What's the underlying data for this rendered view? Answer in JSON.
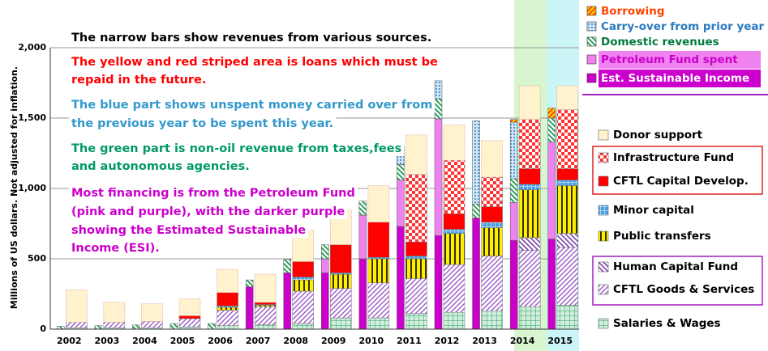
{
  "chart_data": {
    "type": "bar",
    "ylabel": "Millions of US dollars.  Not adjusted for inflation.",
    "categories": [
      "2002",
      "2003",
      "2004",
      "2005",
      "2006",
      "2007",
      "2008",
      "2009",
      "2010",
      "2011",
      "2012",
      "2013",
      "2014",
      "2015"
    ],
    "ylim": [
      0,
      2000
    ],
    "yticks": [
      0,
      500,
      {
        "value": 1000,
        "label": "1,000"
      },
      {
        "value": 1500,
        "label": "1,500"
      },
      {
        "value": 2000,
        "label": "2,000"
      }
    ],
    "revenue_series": [
      {
        "name": "Est. Sustainable Income",
        "color": "#cc00cc",
        "values": [
          0,
          0,
          0,
          0,
          0,
          300,
          400,
          400,
          500,
          730,
          665,
          790,
          630,
          640
        ]
      },
      {
        "name": "Petroleum Fund spent",
        "color": "#ee82ee",
        "values": [
          0,
          0,
          0,
          0,
          0,
          0,
          0,
          100,
          310,
          330,
          830,
          0,
          270,
          690
        ]
      },
      {
        "name": "Domestic revenues",
        "color": "#2e9e5a",
        "values": [
          20,
          25,
          30,
          40,
          40,
          50,
          95,
          100,
          100,
          110,
          140,
          100,
          170,
          170
        ]
      },
      {
        "name": "Carry-over from prior year",
        "color": "#5aa8e0",
        "values": [
          0,
          0,
          0,
          0,
          0,
          0,
          0,
          0,
          0,
          130,
          130,
          590,
          400,
          0
        ]
      },
      {
        "name": "Borrowing",
        "color": "#ffcc00",
        "values": [
          0,
          0,
          0,
          0,
          0,
          0,
          0,
          0,
          0,
          0,
          0,
          0,
          20,
          70
        ]
      }
    ],
    "expenditure_series": [
      {
        "name": "Salaries & Wages",
        "color": "#9fe0b0",
        "values": [
          10,
          10,
          10,
          15,
          25,
          30,
          40,
          80,
          80,
          110,
          120,
          130,
          160,
          170
        ]
      },
      {
        "name": "CFTL Goods & Services",
        "color": "#9b59c8",
        "values": [
          40,
          40,
          45,
          60,
          110,
          130,
          230,
          210,
          250,
          250,
          340,
          390,
          400,
          410
        ]
      },
      {
        "name": "Human Capital Fund",
        "color": "#7a3fa8",
        "values": [
          0,
          0,
          0,
          0,
          0,
          0,
          0,
          0,
          0,
          0,
          0,
          0,
          90,
          100
        ]
      },
      {
        "name": "Public transfers",
        "color": "#ffee00",
        "values": [
          0,
          0,
          0,
          0,
          20,
          10,
          80,
          100,
          170,
          140,
          220,
          200,
          340,
          340
        ]
      },
      {
        "name": "Minor capital",
        "color": "#4aa0e0",
        "values": [
          0,
          0,
          0,
          0,
          10,
          5,
          20,
          10,
          10,
          20,
          30,
          40,
          40,
          40
        ]
      },
      {
        "name": "CFTL Capital Develop.",
        "color": "#ff0000",
        "values": [
          0,
          0,
          0,
          20,
          95,
          15,
          110,
          200,
          250,
          100,
          110,
          110,
          110,
          80
        ]
      },
      {
        "name": "Infrastructure Fund",
        "color": "#ff3333",
        "values": [
          0,
          0,
          0,
          0,
          0,
          0,
          0,
          0,
          0,
          480,
          380,
          210,
          350,
          420
        ]
      },
      {
        "name": "Donor support",
        "color": "#fff2cc",
        "values": [
          230,
          140,
          125,
          120,
          165,
          200,
          225,
          245,
          260,
          280,
          250,
          260,
          240,
          170
        ]
      }
    ],
    "annotations": [
      {
        "color": "#000000",
        "lines": [
          "The narrow bars show revenues from various sources."
        ]
      },
      {
        "color": "#ff0000",
        "lines": [
          "The yellow and red striped area is loans which must be",
          "repaid in the future."
        ]
      },
      {
        "color": "#3399cc",
        "lines": [
          "The blue part shows unspent money carried over from",
          "the previous year to be spent this year."
        ]
      },
      {
        "color": "#009966",
        "lines": [
          "The green part is non-oil revenue from taxes,fees",
          "and autonomous agencies."
        ]
      },
      {
        "color": "#cc00cc",
        "lines": [
          "Most financing is from the Petroleum Fund",
          "(pink and purple), with the darker purple",
          "showing the Estimated Sustainable",
          "Income (ESI)."
        ]
      }
    ]
  }
}
